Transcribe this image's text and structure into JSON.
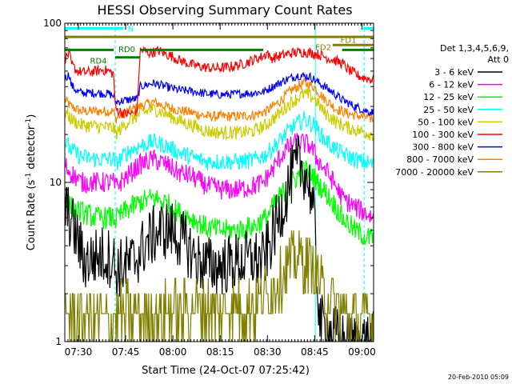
{
  "chart_data": {
    "type": "line",
    "title": "HESSI Observing Summary Count Rates",
    "xlabel": "Start Time (24-Oct-07 07:25:42)",
    "ylabel_main": "Count Rate (s",
    "ylabel_sup": "-1",
    "ylabel_rest": " detector",
    "ylabel_sup2": "-1",
    "ylabel_close": ")",
    "yscale": "log",
    "ylim": [
      1,
      100
    ],
    "xlim_minutes": [
      0,
      98
    ],
    "x_ticks": [
      {
        "label": "07:30",
        "min": 4.3
      },
      {
        "label": "07:45",
        "min": 19.3
      },
      {
        "label": "08:00",
        "min": 34.3
      },
      {
        "label": "08:15",
        "min": 49.3
      },
      {
        "label": "08:30",
        "min": 64.3
      },
      {
        "label": "08:45",
        "min": 79.3
      },
      {
        "label": "09:00",
        "min": 94.3
      }
    ],
    "y_ticks": [
      {
        "label": "1",
        "value": 1
      },
      {
        "label": "10",
        "value": 10
      },
      {
        "label": "100",
        "value": 100
      }
    ],
    "footer_date": "20-Feb-2010 05:09",
    "legend_header": [
      "Det 1,3,4,5,6,9,",
      "Att 0"
    ],
    "series": [
      {
        "name": "3 - 6 keV",
        "color": "#000000",
        "base": 3.5,
        "noise": 0.35,
        "points": [
          [
            0,
            7
          ],
          [
            1.5,
            6
          ],
          [
            3,
            5
          ],
          [
            6,
            3.2
          ],
          [
            12,
            3.5
          ],
          [
            15.5,
            3.3
          ],
          [
            16,
            2.8
          ],
          [
            22,
            3.2
          ],
          [
            26,
            4.2
          ],
          [
            30,
            5
          ],
          [
            34,
            5
          ],
          [
            36,
            4.5
          ],
          [
            38,
            4.2
          ],
          [
            42,
            3.2
          ],
          [
            46,
            3.0
          ],
          [
            50,
            3.0
          ],
          [
            56,
            3.2
          ],
          [
            60,
            3.3
          ],
          [
            63,
            3.2
          ],
          [
            65,
            4
          ],
          [
            68,
            6
          ],
          [
            70,
            8
          ],
          [
            72,
            11
          ],
          [
            74,
            13
          ],
          [
            76,
            12
          ],
          [
            78,
            9
          ],
          [
            79,
            6
          ],
          [
            80,
            2.5
          ],
          [
            81,
            1.3
          ],
          [
            88,
            1.0
          ]
        ]
      },
      {
        "name": "6 - 12 keV",
        "color": "#ff00ff",
        "base": 10,
        "noise": 0.12,
        "points": [
          [
            0,
            13
          ],
          [
            1,
            12
          ],
          [
            3,
            11
          ],
          [
            5,
            10
          ],
          [
            10,
            10
          ],
          [
            15.5,
            10
          ],
          [
            16,
            9.3
          ],
          [
            20,
            11
          ],
          [
            24,
            13
          ],
          [
            28,
            14
          ],
          [
            32,
            13
          ],
          [
            36,
            11.5
          ],
          [
            40,
            11
          ],
          [
            45,
            9.5
          ],
          [
            50,
            9
          ],
          [
            55,
            9
          ],
          [
            60,
            9.5
          ],
          [
            63,
            10
          ],
          [
            66,
            12
          ],
          [
            70,
            16
          ],
          [
            74,
            18
          ],
          [
            78,
            17
          ],
          [
            80,
            14
          ],
          [
            84,
            11
          ],
          [
            88,
            8
          ],
          [
            92,
            7
          ],
          [
            95,
            6.5
          ],
          [
            98,
            6
          ]
        ]
      },
      {
        "name": "12 - 25 keV",
        "color": "#00ff00",
        "base": 6,
        "noise": 0.13,
        "points": [
          [
            0,
            8
          ],
          [
            2,
            7
          ],
          [
            5,
            6.5
          ],
          [
            10,
            6
          ],
          [
            15.5,
            6
          ],
          [
            16,
            5.8
          ],
          [
            20,
            6.8
          ],
          [
            24,
            7.5
          ],
          [
            28,
            8
          ],
          [
            32,
            7.5
          ],
          [
            36,
            6.5
          ],
          [
            40,
            6
          ],
          [
            45,
            5.2
          ],
          [
            50,
            5
          ],
          [
            55,
            5
          ],
          [
            60,
            5.3
          ],
          [
            64,
            6
          ],
          [
            68,
            8
          ],
          [
            72,
            10
          ],
          [
            76,
            12
          ],
          [
            79,
            11
          ],
          [
            80,
            10
          ],
          [
            84,
            8
          ],
          [
            88,
            6
          ],
          [
            92,
            5
          ],
          [
            96,
            4.5
          ]
        ]
      },
      {
        "name": "25 - 50 keV",
        "color": "#00ffff",
        "base": 14,
        "noise": 0.1,
        "points": [
          [
            0,
            18
          ],
          [
            2,
            16
          ],
          [
            5,
            14.5
          ],
          [
            10,
            14
          ],
          [
            15.5,
            14
          ],
          [
            16,
            13
          ],
          [
            20,
            15.5
          ],
          [
            24,
            17
          ],
          [
            28,
            18
          ],
          [
            32,
            17
          ],
          [
            36,
            15.5
          ],
          [
            40,
            14.5
          ],
          [
            45,
            13.5
          ],
          [
            50,
            13.5
          ],
          [
            55,
            13.5
          ],
          [
            60,
            13.8
          ],
          [
            64,
            15
          ],
          [
            68,
            18
          ],
          [
            72,
            22
          ],
          [
            76,
            25
          ],
          [
            79,
            23
          ],
          [
            82,
            19
          ],
          [
            86,
            16
          ],
          [
            90,
            14.5
          ],
          [
            94,
            13.5
          ],
          [
            98,
            13
          ]
        ]
      },
      {
        "name": "50 - 100 keV",
        "color": "#cccc00",
        "base": 22,
        "noise": 0.08,
        "points": [
          [
            0,
            28
          ],
          [
            2,
            25
          ],
          [
            5,
            23
          ],
          [
            10,
            22.5
          ],
          [
            15.5,
            22
          ],
          [
            16,
            20
          ],
          [
            20,
            24
          ],
          [
            24,
            27
          ],
          [
            28,
            29
          ],
          [
            32,
            27
          ],
          [
            36,
            24.5
          ],
          [
            40,
            23
          ],
          [
            45,
            21
          ],
          [
            50,
            20.5
          ],
          [
            55,
            20.5
          ],
          [
            60,
            21
          ],
          [
            64,
            23
          ],
          [
            68,
            27
          ],
          [
            72,
            32
          ],
          [
            76,
            36
          ],
          [
            79,
            34
          ],
          [
            82,
            28
          ],
          [
            86,
            24
          ],
          [
            90,
            22
          ],
          [
            94,
            21
          ],
          [
            98,
            20
          ]
        ]
      },
      {
        "name": "100 - 300 keV",
        "color": "#ff0000",
        "base": 50,
        "noise": 0.06,
        "points": [
          [
            0,
            60
          ],
          [
            1.5,
            65
          ],
          [
            2,
            55
          ],
          [
            4,
            50
          ],
          [
            6,
            49
          ],
          [
            10,
            50
          ],
          [
            12,
            51
          ],
          [
            14,
            50
          ],
          [
            15.5,
            48
          ],
          [
            16,
            29
          ],
          [
            19,
            27
          ],
          [
            23,
            27
          ],
          [
            24,
            68
          ],
          [
            27,
            65
          ],
          [
            30,
            67
          ],
          [
            32,
            64
          ],
          [
            34,
            62
          ],
          [
            36,
            59
          ],
          [
            40,
            55
          ],
          [
            44,
            53
          ],
          [
            48,
            52
          ],
          [
            52,
            53
          ],
          [
            56,
            55
          ],
          [
            60,
            59
          ],
          [
            63,
            62
          ],
          [
            64.5,
            66
          ],
          [
            65,
            60
          ],
          [
            68,
            62
          ],
          [
            72,
            65
          ],
          [
            76,
            66
          ],
          [
            78,
            65
          ],
          [
            80,
            64
          ],
          [
            84,
            60
          ],
          [
            88,
            56
          ],
          [
            90,
            51
          ],
          [
            92,
            48
          ],
          [
            94,
            46
          ],
          [
            98,
            44
          ]
        ]
      },
      {
        "name": "300 - 800 keV",
        "color": "#0000ff",
        "base": 36,
        "noise": 0.05,
        "points": [
          [
            0,
            45
          ],
          [
            1.5,
            48
          ],
          [
            2,
            41
          ],
          [
            4,
            37
          ],
          [
            6,
            36.5
          ],
          [
            10,
            36.5
          ],
          [
            14,
            36
          ],
          [
            15.5,
            35
          ],
          [
            16,
            32
          ],
          [
            20,
            33
          ],
          [
            23,
            33.5
          ],
          [
            24,
            40
          ],
          [
            28,
            42
          ],
          [
            32,
            40
          ],
          [
            36,
            38
          ],
          [
            40,
            37.5
          ],
          [
            45,
            36
          ],
          [
            50,
            35.5
          ],
          [
            55,
            36
          ],
          [
            60,
            36.5
          ],
          [
            63,
            37
          ],
          [
            66,
            40
          ],
          [
            70,
            44
          ],
          [
            74,
            47
          ],
          [
            78,
            46
          ],
          [
            80,
            43
          ],
          [
            84,
            38
          ],
          [
            88,
            33
          ],
          [
            92,
            30
          ],
          [
            96,
            28
          ],
          [
            98,
            27.5
          ]
        ]
      },
      {
        "name": "800 - 7000 keV",
        "color": "#ff8000",
        "base": 28,
        "noise": 0.06,
        "points": [
          [
            0,
            33
          ],
          [
            2,
            30
          ],
          [
            5,
            28
          ],
          [
            10,
            28
          ],
          [
            15.5,
            28
          ],
          [
            16,
            25
          ],
          [
            20,
            28
          ],
          [
            24,
            30
          ],
          [
            28,
            32
          ],
          [
            32,
            30
          ],
          [
            36,
            28.5
          ],
          [
            40,
            27.5
          ],
          [
            45,
            26
          ],
          [
            50,
            26
          ],
          [
            55,
            26
          ],
          [
            60,
            26.5
          ],
          [
            64,
            28
          ],
          [
            68,
            32
          ],
          [
            72,
            38
          ],
          [
            76,
            42
          ],
          [
            79,
            40
          ],
          [
            82,
            34
          ],
          [
            86,
            29
          ],
          [
            90,
            27
          ],
          [
            94,
            26
          ],
          [
            98,
            25
          ]
        ]
      },
      {
        "name": "7000 - 20000 keV",
        "color": "#808000",
        "base": 1.5,
        "noise": 0.35,
        "quantized": true,
        "points": [
          [
            0,
            1.5
          ],
          [
            10,
            1.4
          ],
          [
            20,
            1.5
          ],
          [
            30,
            1.5
          ],
          [
            40,
            1.6
          ],
          [
            50,
            1.6
          ],
          [
            60,
            1.7
          ],
          [
            65,
            2.0
          ],
          [
            70,
            2.8
          ],
          [
            74,
            3.4
          ],
          [
            78,
            3.0
          ],
          [
            80,
            2.6
          ],
          [
            82,
            2.0
          ],
          [
            86,
            1.6
          ],
          [
            90,
            1.5
          ],
          [
            98,
            1.4
          ]
        ]
      }
    ],
    "flags": [
      {
        "name": "N",
        "color": "#00ffff",
        "value": 93,
        "segments": [
          [
            0,
            18.5
          ],
          [
            94.7,
            98
          ]
        ]
      },
      {
        "name": "FD1",
        "color": "#808000",
        "value": 82,
        "segments": [
          [
            0,
            98
          ]
        ]
      },
      {
        "name": "FD2",
        "color": "#808000",
        "value": 73,
        "segments": [
          [
            85,
            98
          ]
        ]
      },
      {
        "name": "RD0",
        "color": "#008000",
        "value": 68,
        "segments": [
          [
            0,
            15.5
          ],
          [
            24,
            63
          ],
          [
            88,
            98
          ]
        ]
      },
      {
        "name": "RD4",
        "color": "#008000",
        "value": 61,
        "segments": [
          [
            16,
            24
          ]
        ]
      }
    ],
    "vlines": [
      {
        "min": 0.0,
        "color": "#00ffff",
        "dashed": false
      },
      {
        "min": 16.0,
        "color": "#00ffff",
        "dashed": true
      },
      {
        "min": 79.5,
        "color": "#00ffff",
        "dashed": false
      },
      {
        "min": 95.0,
        "color": "#00ffff",
        "dashed": true
      }
    ]
  }
}
